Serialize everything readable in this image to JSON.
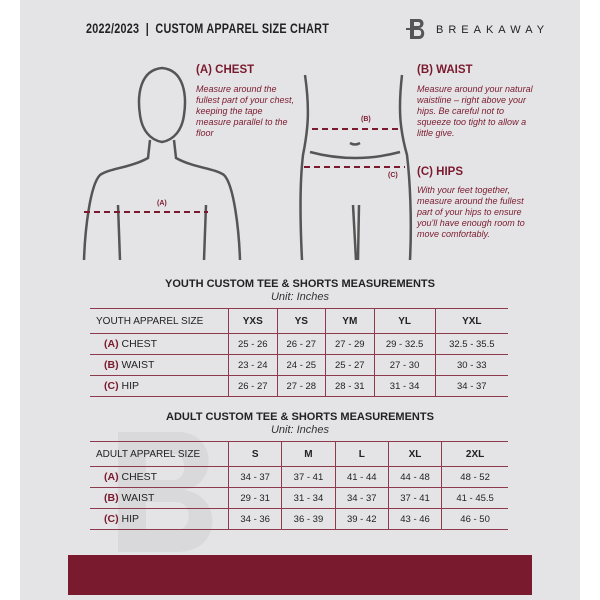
{
  "header": {
    "title": "2022/2023  |  CUSTOM APPAREL SIZE CHART",
    "brand": "BREAKAWAY",
    "logo_letter": "B"
  },
  "measures": {
    "chest": {
      "title": "(A) CHEST",
      "text": "Measure around the fullest part of your chest, keeping the tape measure parallel to the floor",
      "marker": "(A)"
    },
    "waist": {
      "title": "(B) WAIST",
      "text": "Measure around your natural waistline – right above your hips. Be careful not to squeeze too tight to allow a little give.",
      "marker": "(B)"
    },
    "hips": {
      "title": "(C) HIPS",
      "text": "With your feet together, measure around the fullest part of your hips to ensure you'll have enough room to move comfortably.",
      "marker": "(C)"
    }
  },
  "youth": {
    "title": "YOUTH CUSTOM TEE & SHORTS MEASUREMENTS",
    "unit": "Unit: Inches",
    "header": "YOUTH APPAREL SIZE",
    "sizes": [
      "YXS",
      "YS",
      "YM",
      "YL",
      "YXL"
    ],
    "rows": [
      {
        "code": "(A)",
        "name": "CHEST",
        "values": [
          "25 - 26",
          "26 - 27",
          "27 - 29",
          "29 - 32.5",
          "32.5 - 35.5"
        ]
      },
      {
        "code": "(B)",
        "name": "WAIST",
        "values": [
          "23 - 24",
          "24 - 25",
          "25 - 27",
          "27 - 30",
          "30 - 33"
        ]
      },
      {
        "code": "(C)",
        "name": "HIP",
        "values": [
          "26 - 27",
          "27 - 28",
          "28 - 31",
          "31 - 34",
          "34 - 37"
        ]
      }
    ]
  },
  "adult": {
    "title": "ADULT CUSTOM TEE & SHORTS MEASUREMENTS",
    "unit": "Unit: Inches",
    "header": "ADULT APPAREL SIZE",
    "sizes": [
      "S",
      "M",
      "L",
      "XL",
      "2XL"
    ],
    "rows": [
      {
        "code": "(A)",
        "name": "CHEST",
        "values": [
          "34 - 37",
          "37 - 41",
          "41 - 44",
          "44 - 48",
          "48 - 52"
        ]
      },
      {
        "code": "(B)",
        "name": "WAIST",
        "values": [
          "29 - 31",
          "31 - 34",
          "34 - 37",
          "37 - 41",
          "41 - 45.5"
        ]
      },
      {
        "code": "(C)",
        "name": "HIP",
        "values": [
          "34 - 36",
          "36 - 39",
          "39 - 42",
          "43 - 46",
          "46 - 50"
        ]
      }
    ]
  },
  "colors": {
    "accent": "#7a1a2e",
    "background": "#e4e4e6"
  }
}
